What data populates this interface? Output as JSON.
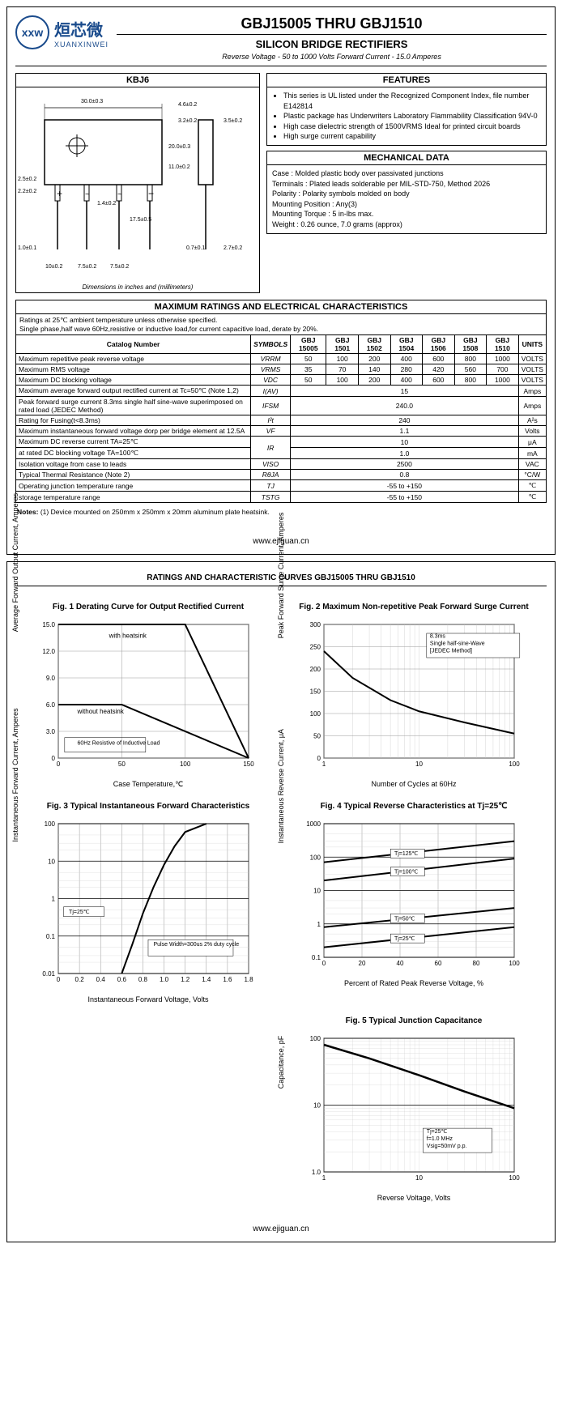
{
  "logo": {
    "brand_cn": "烜芯微",
    "brand_en": "XUANXINWEI",
    "mark": "xxw"
  },
  "header": {
    "title": "GBJ15005 THRU GBJ1510",
    "subtitle": "SILICON BRIDGE RECTIFIERS",
    "spec": "Reverse Voltage - 50 to 1000 Volts    Forward Current - 15.0 Amperes"
  },
  "diagram": {
    "title": "KBJ6",
    "footer": "Dimensions in inches and (millimeters)",
    "dims": [
      "30.0±0.3",
      "4.6±0.2",
      "3.2±0.2",
      "3.5±0.2",
      "20.0±0.3",
      "11.0±0.2",
      "2.5±0.2",
      "2.2±0.2",
      "1.4±0.2",
      "17.5±0.5",
      "1.0±0.1",
      "0.7±0.1",
      "2.7±0.2",
      "10±0.2",
      "7.5±0.2",
      "7.5±0.2"
    ]
  },
  "features": {
    "title": "FEATURES",
    "items": [
      "This series is UL listed under the Recognized Component Index, file number E142814",
      "Plastic package has Underwriters Laboratory Flammability Classification 94V-0",
      "High case dielectric strength of 1500VRMS Ideal for printed circuit boards",
      "High surge current capability"
    ]
  },
  "mechdata": {
    "title": "MECHANICAL DATA",
    "lines": [
      "Case : Molded plastic body over passivated junctions",
      "Terminals : Plated leads solderable per MIL-STD-750, Method 2026",
      "Polarity : Polarity symbols molded on body",
      "Mounting Position : Any(3)",
      "Mounting Torque : 5 in-lbs max.",
      "Weight : 0.26 ounce, 7.0 grams (approx)"
    ]
  },
  "ratings": {
    "title": "MAXIMUM RATINGS AND ELECTRICAL CHARACTERISTICS",
    "note": "Ratings at 25℃ ambient temperature unless otherwise specified.\nSingle phase,half wave 60Hz,resistive or inductive load,for current capacitive load, derate by 20%.",
    "headers": [
      "Catalog Number",
      "SYMBOLS",
      "GBJ 15005",
      "GBJ 1501",
      "GBJ 1502",
      "GBJ 1504",
      "GBJ 1506",
      "GBJ 1508",
      "GBJ 1510",
      "UNITS"
    ],
    "rows": [
      {
        "label": "Maximum repetitive peak reverse voltage",
        "sym": "VRRM",
        "v": [
          "50",
          "100",
          "200",
          "400",
          "600",
          "800",
          "1000"
        ],
        "unit": "VOLTS"
      },
      {
        "label": "Maximum RMS voltage",
        "sym": "VRMS",
        "v": [
          "35",
          "70",
          "140",
          "280",
          "420",
          "560",
          "700"
        ],
        "unit": "VOLTS"
      },
      {
        "label": "Maximum DC blocking voltage",
        "sym": "VDC",
        "v": [
          "50",
          "100",
          "200",
          "400",
          "600",
          "800",
          "1000"
        ],
        "unit": "VOLTS"
      },
      {
        "label": "Maximum average forward output rectified current at Tc=50℃ (Note 1,2)",
        "sym": "I(AV)",
        "span": "15",
        "unit": "Amps"
      },
      {
        "label": "Peak forward surge current 8.3ms single half sine-wave superimposed on rated load (JEDEC Method)",
        "sym": "IFSM",
        "span": "240.0",
        "unit": "Amps"
      },
      {
        "label": "Rating for Fusing(t<8.3ms)",
        "sym": "I²t",
        "span": "240",
        "unit": "A²s"
      },
      {
        "label": "Maximum instantaneous forward voltage dorp per bridge element at 12.5A",
        "sym": "VF",
        "span": "1.1",
        "unit": "Volts"
      },
      {
        "label": "Maximum DC reverse current    TA=25℃",
        "sym": "IR",
        "span": "10",
        "unit": "μA",
        "rowspan": true
      },
      {
        "label": "at rated DC blocking voltage    TA=100℃",
        "sym": "",
        "span": "1.0",
        "unit": "mA"
      },
      {
        "label": "Isolation voltage from case to leads",
        "sym": "VISO",
        "span": "2500",
        "unit": "VAC"
      },
      {
        "label": "Typical Thermal Resistance (Note 2)",
        "sym": "RθJA",
        "span": "0.8",
        "unit": "°C/W"
      },
      {
        "label": "Operating junction temperature range",
        "sym": "TJ",
        "span": "-55 to +150",
        "unit": "℃"
      },
      {
        "label": "storage temperature range",
        "sym": "TSTG",
        "span": "-55 to +150",
        "unit": "℃"
      }
    ],
    "footnote": "Notes: (1) Device mounted on 250mm x 250mm x 20mm aluminum plate heatsink."
  },
  "url": "www.ejiguan.cn",
  "page2": {
    "title": "RATINGS AND CHARACTERISTIC CURVES GBJ15005 THRU GBJ1510",
    "fig1": {
      "title": "Fig. 1 Derating Curve for Output Rectified Current",
      "ylabel": "Average Forward Output Current, Amperes",
      "xlabel": "Case Temperature,℃",
      "yticks": [
        "0",
        "3.0",
        "6.0",
        "9.0",
        "12.0",
        "15.0"
      ],
      "xticks": [
        "0",
        "50",
        "100",
        "150"
      ],
      "annotations": [
        "with heatsink",
        "without heatsink",
        "60Hz Resistive of Inductive Load"
      ],
      "line1": [
        [
          0,
          15
        ],
        [
          100,
          15
        ],
        [
          150,
          0
        ]
      ],
      "line2": [
        [
          0,
          6
        ],
        [
          50,
          6
        ],
        [
          150,
          0
        ]
      ],
      "colors": {
        "grid": "#999",
        "line": "#000",
        "bg": "#fff"
      }
    },
    "fig2": {
      "title": "Fig. 2 Maximum Non-repetitive Peak Forward Surge Current",
      "ylabel": "Peak Forward Surge Current, Amperes",
      "xlabel": "Number of Cycles at 60Hz",
      "yticks": [
        "0",
        "50",
        "100",
        "150",
        "200",
        "250",
        "300"
      ],
      "xticks": [
        "1",
        "10",
        "100"
      ],
      "annotation": "8.3ms\nSingle half-sine-Wave\n[JEDEC Method]",
      "line": [
        [
          1,
          240
        ],
        [
          2,
          180
        ],
        [
          5,
          130
        ],
        [
          10,
          105
        ],
        [
          30,
          80
        ],
        [
          100,
          55
        ]
      ],
      "colors": {
        "grid": "#999",
        "line": "#000",
        "bg": "#fff"
      }
    },
    "fig3": {
      "title": "Fig. 3 Typical Instantaneous Forward Characteristics",
      "ylabel": "Instantaneous Forward Current, Amperes",
      "xlabel": "Instantaneous Forward Voltage, Volts",
      "yticks": [
        "0.01",
        "0.1",
        "1",
        "10",
        "100"
      ],
      "xticks": [
        "0",
        "0.2",
        "0.4",
        "0.6",
        "0.8",
        "1.0",
        "1.2",
        "1.4",
        "1.6",
        "1.8"
      ],
      "annotations": [
        "Tj=25℃",
        "Pulse Width=300us 2% duty cycle"
      ],
      "line": [
        [
          0.6,
          0.01
        ],
        [
          0.7,
          0.06
        ],
        [
          0.8,
          0.4
        ],
        [
          0.9,
          2
        ],
        [
          1.0,
          8
        ],
        [
          1.1,
          25
        ],
        [
          1.2,
          60
        ],
        [
          1.4,
          100
        ]
      ],
      "colors": {
        "grid": "#999",
        "line": "#000",
        "bg": "#fff"
      }
    },
    "fig4": {
      "title": "Fig. 4 Typical Reverse Characteristics at Tj=25℃",
      "ylabel": "Instantaneous Reverse Current, μA",
      "xlabel": "Percent of Rated Peak Reverse Voltage, %",
      "yticks": [
        "0.1",
        "1",
        "10",
        "100",
        "1000"
      ],
      "xticks": [
        "0",
        "20",
        "40",
        "60",
        "80",
        "100"
      ],
      "labels": [
        "Tj=125℃",
        "Tj=100℃",
        "Tj=50℃",
        "Tj=25℃"
      ],
      "lines": [
        [
          [
            0,
            70
          ],
          [
            100,
            300
          ]
        ],
        [
          [
            0,
            20
          ],
          [
            100,
            90
          ]
        ],
        [
          [
            0,
            0.8
          ],
          [
            100,
            3
          ]
        ],
        [
          [
            0,
            0.2
          ],
          [
            100,
            0.8
          ]
        ]
      ],
      "colors": {
        "grid": "#999",
        "line": "#000",
        "bg": "#fff"
      }
    },
    "fig5": {
      "title": "Fig. 5 Typical Junction Capacitance",
      "ylabel": "Capacitance, pF",
      "xlabel": "Reverse Voltage, Volts",
      "yticks": [
        "1.0",
        "10",
        "100"
      ],
      "xticks": [
        "1",
        "10",
        "100"
      ],
      "annotation": "Tj=25℃\nf=1.0 MHz\nVsig=50mV p.p.",
      "line": [
        [
          1,
          80
        ],
        [
          3,
          50
        ],
        [
          10,
          28
        ],
        [
          30,
          16
        ],
        [
          100,
          9
        ]
      ],
      "colors": {
        "grid": "#999",
        "line": "#000",
        "bg": "#fff"
      }
    }
  }
}
